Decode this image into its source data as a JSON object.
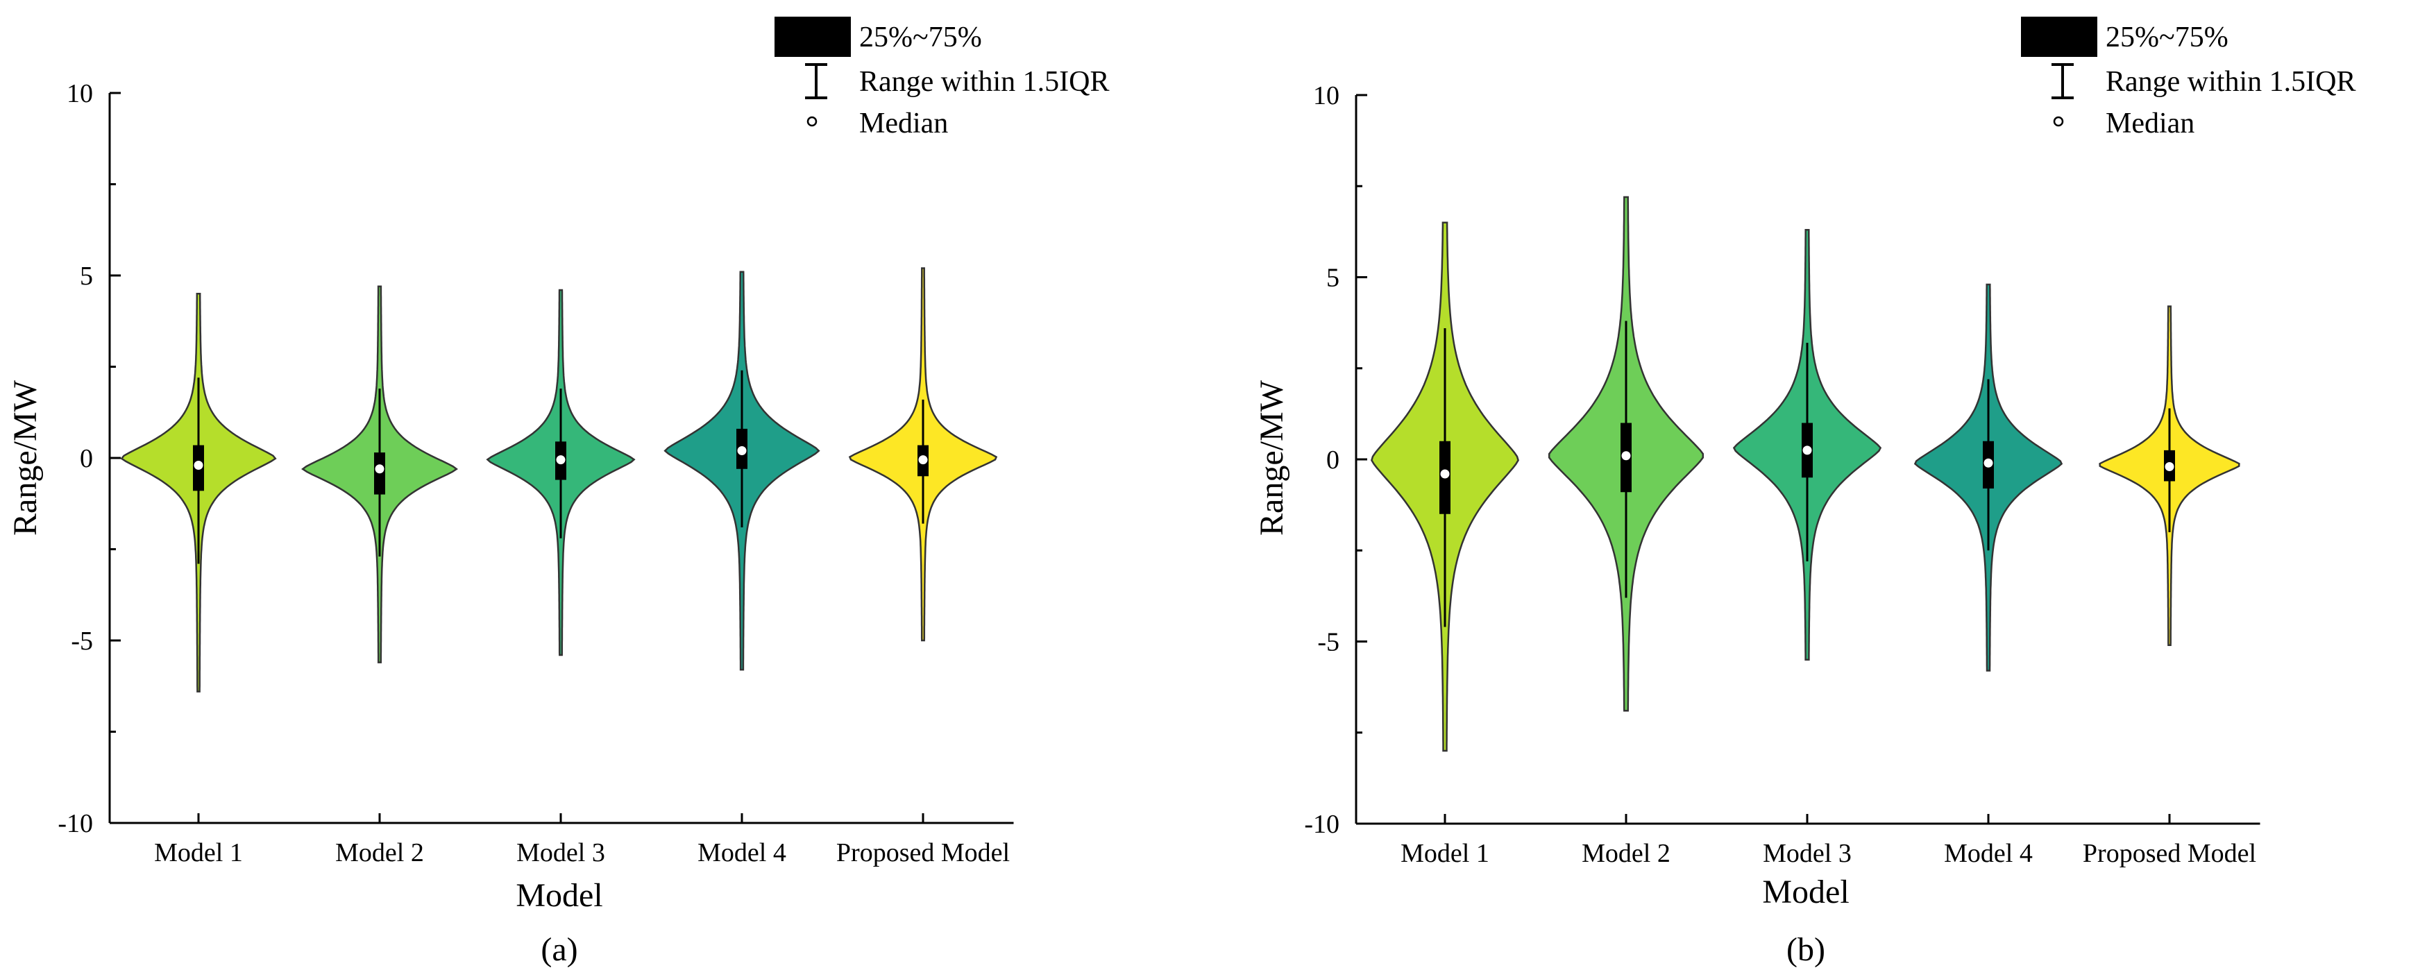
{
  "figure": {
    "panel_labels": [
      "(a)",
      "(b)"
    ]
  },
  "legend": {
    "iqr_label": "25%~75%",
    "range_label": "Range within 1.5IQR",
    "median_label": "Median"
  },
  "colors": {
    "model_1": "#b5de2b",
    "model_2": "#6ece58",
    "model_3": "#35b779",
    "model_4": "#1f9e89",
    "proposed": "#fde725",
    "outline": "#333333",
    "box": "#000000",
    "median": "#ffffff"
  },
  "chart_data": [
    {
      "type": "violin",
      "panel": "(a)",
      "xlabel": "Model",
      "ylabel": "Range/MW",
      "ylim": [
        -10,
        10
      ],
      "yticks": [
        "10",
        "5",
        "0",
        "-5",
        "-10"
      ],
      "categories": [
        "Model 1",
        "Model 2",
        "Model 3",
        "Model 4",
        "Proposed Model"
      ],
      "series": [
        {
          "name": "Model 1",
          "min": -6.4,
          "max": 4.5,
          "q1": -0.9,
          "q3": 0.35,
          "median": -0.2,
          "whisker_low": -2.9,
          "whisker_high": 2.2,
          "peak": 0.0,
          "spread": 0.75,
          "width": 0.42
        },
        {
          "name": "Model 2",
          "min": -5.6,
          "max": 4.7,
          "q1": -1.0,
          "q3": 0.15,
          "median": -0.3,
          "whisker_low": -2.7,
          "whisker_high": 1.9,
          "peak": -0.3,
          "spread": 0.7,
          "width": 0.42
        },
        {
          "name": "Model 3",
          "min": -5.4,
          "max": 4.6,
          "q1": -0.6,
          "q3": 0.45,
          "median": -0.05,
          "whisker_low": -2.2,
          "whisker_high": 1.9,
          "peak": -0.05,
          "spread": 0.7,
          "width": 0.4
        },
        {
          "name": "Model 4",
          "min": -5.8,
          "max": 5.1,
          "q1": -0.3,
          "q3": 0.8,
          "median": 0.2,
          "whisker_low": -1.9,
          "whisker_high": 2.4,
          "peak": 0.2,
          "spread": 0.85,
          "width": 0.42
        },
        {
          "name": "Proposed Model",
          "min": -5.0,
          "max": 5.2,
          "q1": -0.5,
          "q3": 0.35,
          "median": -0.05,
          "whisker_low": -1.8,
          "whisker_high": 1.6,
          "peak": 0.0,
          "spread": 0.65,
          "width": 0.4
        }
      ]
    },
    {
      "type": "violin",
      "panel": "(b)",
      "xlabel": "Model",
      "ylabel": "Range/MW",
      "ylim": [
        -10,
        10
      ],
      "yticks": [
        "10",
        "5",
        "0",
        "-5",
        "-10"
      ],
      "categories": [
        "Model 1",
        "Model 2",
        "Model 3",
        "Model 4",
        "Proposed Model"
      ],
      "series": [
        {
          "name": "Model 1",
          "min": -8.0,
          "max": 6.5,
          "q1": -1.5,
          "q3": 0.5,
          "median": -0.4,
          "whisker_low": -4.6,
          "whisker_high": 3.6,
          "peak": 0.0,
          "spread": 1.6,
          "width": 0.4
        },
        {
          "name": "Model 2",
          "min": -6.9,
          "max": 7.2,
          "q1": -0.9,
          "q3": 1.0,
          "median": 0.1,
          "whisker_low": -3.8,
          "whisker_high": 3.8,
          "peak": 0.1,
          "spread": 1.5,
          "width": 0.42
        },
        {
          "name": "Model 3",
          "min": -5.5,
          "max": 6.3,
          "q1": -0.5,
          "q3": 1.0,
          "median": 0.25,
          "whisker_low": -2.8,
          "whisker_high": 3.2,
          "peak": 0.3,
          "spread": 1.1,
          "width": 0.4
        },
        {
          "name": "Model 4",
          "min": -5.8,
          "max": 4.8,
          "q1": -0.8,
          "q3": 0.5,
          "median": -0.1,
          "whisker_low": -2.5,
          "whisker_high": 2.2,
          "peak": -0.1,
          "spread": 0.9,
          "width": 0.4
        },
        {
          "name": "Proposed Model",
          "min": -5.1,
          "max": 4.2,
          "q1": -0.6,
          "q3": 0.25,
          "median": -0.2,
          "whisker_low": -2.0,
          "whisker_high": 1.4,
          "peak": -0.15,
          "spread": 0.6,
          "width": 0.38
        }
      ]
    }
  ]
}
